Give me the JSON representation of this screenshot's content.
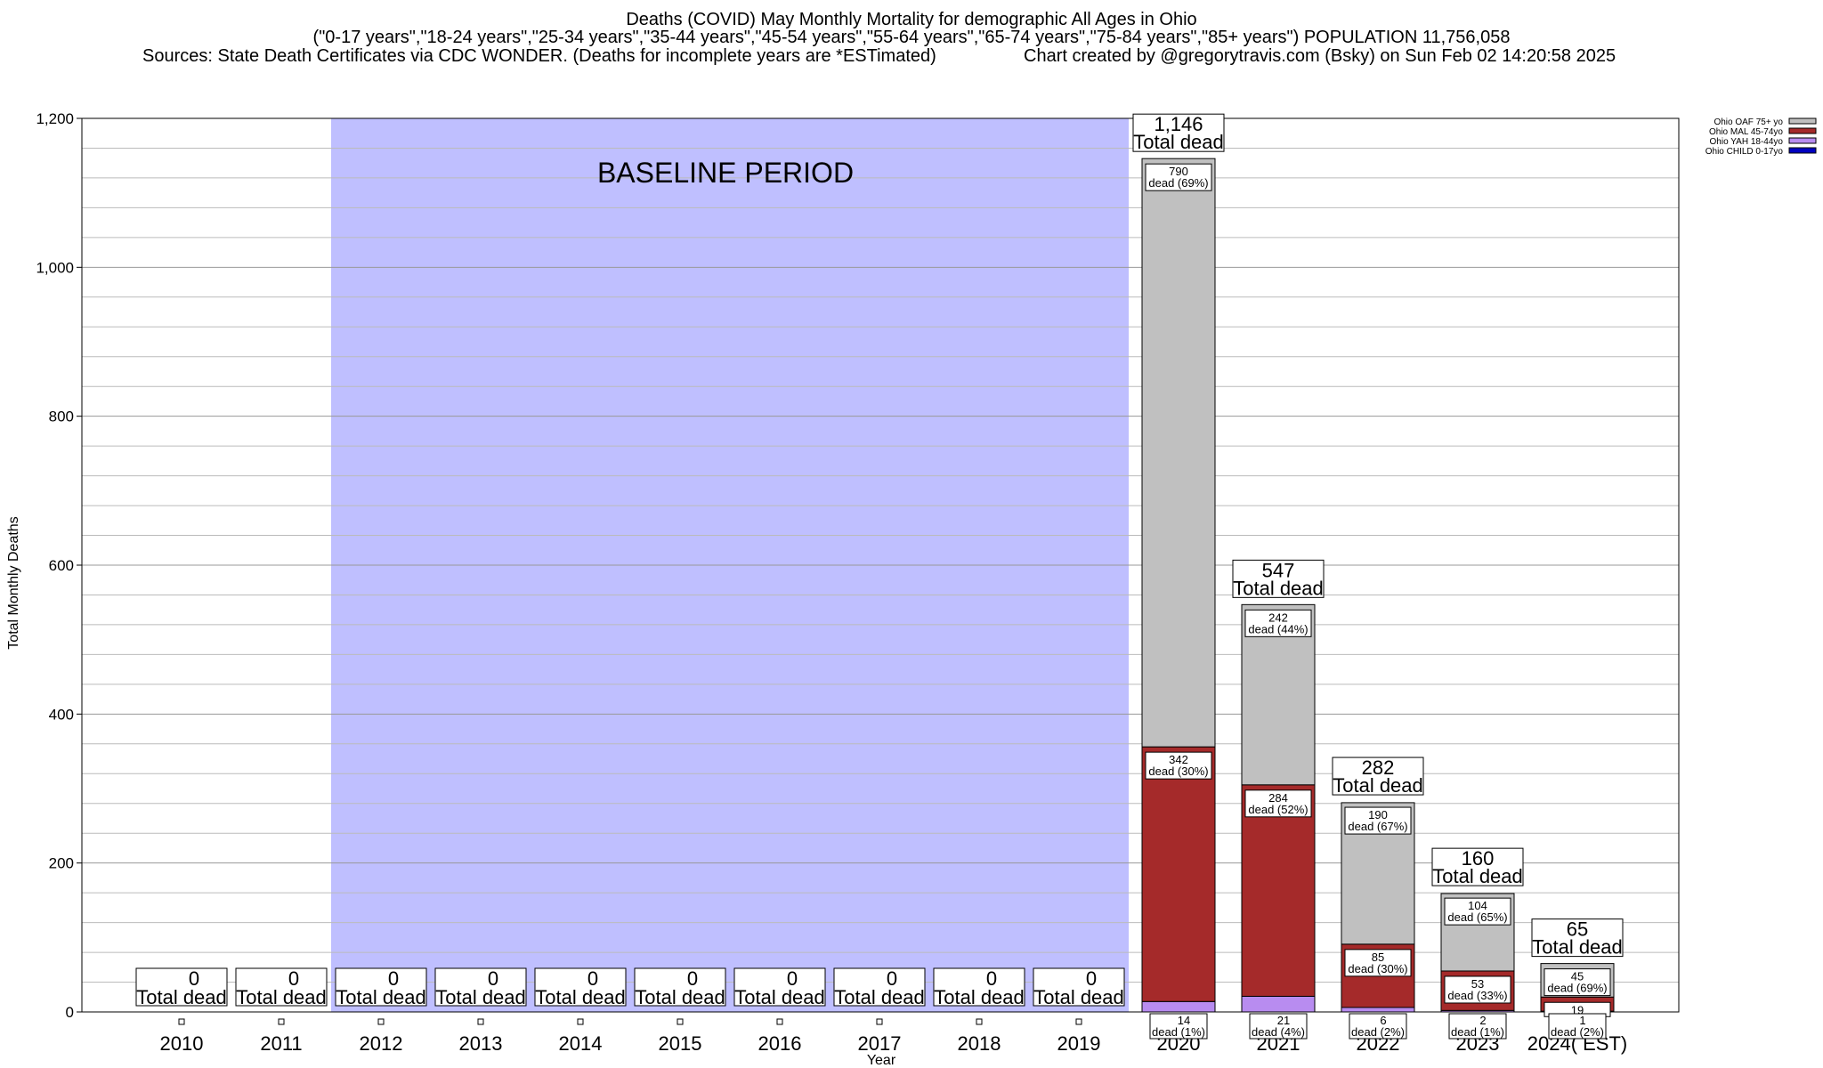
{
  "title": {
    "line1": "Deaths (COVID) May Monthly Mortality for demographic All Ages in Ohio",
    "line2": "(\"0-17 years\",\"18-24 years\",\"25-34 years\",\"35-44 years\",\"45-54 years\",\"55-64 years\",\"65-74 years\",\"75-84 years\",\"85+ years\") POPULATION 11,756,058",
    "sources": "Sources: State Death Certificates via CDC WONDER. (Deaths for incomplete years are *ESTimated)",
    "credit": "Chart created by @gregorytravis.com (Bsky) on Sun Feb 02 14:20:58 2025"
  },
  "chart_data": {
    "type": "bar",
    "stacked": true,
    "categories": [
      "2010",
      "2011",
      "2012",
      "2013",
      "2014",
      "2015",
      "2016",
      "2017",
      "2018",
      "2019",
      "2020",
      "2021",
      "2022",
      "2023",
      "2024( EST)"
    ],
    "xlabel": "Year",
    "ylabel": "Total Monthly Deaths",
    "ylim": [
      0,
      1200
    ],
    "yticks": [
      0,
      200,
      400,
      600,
      800,
      1000,
      1200
    ],
    "ytick_labels": [
      "0",
      "200",
      "400",
      "600",
      "800",
      "1,000",
      "1,200"
    ],
    "grid": true,
    "baseline_period": {
      "label": "BASELINE PERIOD",
      "from": "2012",
      "to": "2019",
      "color": "#bfbfff"
    },
    "series": [
      {
        "name": "Ohio CHILD 0-17yo",
        "color": "#0000c0",
        "values": [
          0,
          0,
          0,
          0,
          0,
          0,
          0,
          0,
          0,
          0,
          0,
          0,
          0,
          0,
          0
        ]
      },
      {
        "name": "Ohio YAH 18-44yo",
        "color": "#b88cf0",
        "values": [
          0,
          0,
          0,
          0,
          0,
          0,
          0,
          0,
          0,
          0,
          14,
          21,
          6,
          2,
          1
        ]
      },
      {
        "name": "Ohio MAL 45-74yo",
        "color": "#a52a2a",
        "values": [
          0,
          0,
          0,
          0,
          0,
          0,
          0,
          0,
          0,
          0,
          342,
          284,
          85,
          53,
          19
        ]
      },
      {
        "name": "Ohio OAF 75+ yo",
        "color": "#c0c0c0",
        "values": [
          0,
          0,
          0,
          0,
          0,
          0,
          0,
          0,
          0,
          0,
          790,
          242,
          190,
          104,
          45
        ]
      }
    ],
    "totals": [
      0,
      0,
      0,
      0,
      0,
      0,
      0,
      0,
      0,
      0,
      1146,
      547,
      282,
      160,
      65
    ],
    "total_labels": [
      "0",
      "0",
      "0",
      "0",
      "0",
      "0",
      "0",
      "0",
      "0",
      "0",
      "1,146",
      "547",
      "282",
      "160",
      "65"
    ],
    "total_suffix": "Total dead",
    "segment_labels": [
      {
        "category": "2020",
        "yah": "14",
        "yah_pct": "dead (1%)",
        "mal": "342",
        "mal_pct": "dead (30%)",
        "oaf": "790",
        "oaf_pct": "dead (69%)"
      },
      {
        "category": "2021",
        "yah": "21",
        "yah_pct": "dead (4%)",
        "mal": "284",
        "mal_pct": "dead (52%)",
        "oaf": "242",
        "oaf_pct": "dead (44%)"
      },
      {
        "category": "2022",
        "yah": "6",
        "yah_pct": "dead (2%)",
        "mal": "85",
        "mal_pct": "dead (30%)",
        "oaf": "190",
        "oaf_pct": "dead (67%)"
      },
      {
        "category": "2023",
        "yah": "2",
        "yah_pct": "dead (1%)",
        "mal": "53",
        "mal_pct": "dead (33%)",
        "oaf": "104",
        "oaf_pct": "dead (65%)"
      },
      {
        "category": "2024( EST)",
        "yah": "1",
        "yah_pct": "dead (2%)",
        "mal": "19",
        "mal_pct": "",
        "oaf": "45",
        "oaf_pct": "dead (69%)"
      }
    ],
    "legend": {
      "position": "top-right",
      "entries": [
        "Ohio OAF 75+ yo",
        "Ohio MAL 45-74yo",
        "Ohio YAH 18-44yo",
        "Ohio CHILD 0-17yo"
      ]
    }
  }
}
